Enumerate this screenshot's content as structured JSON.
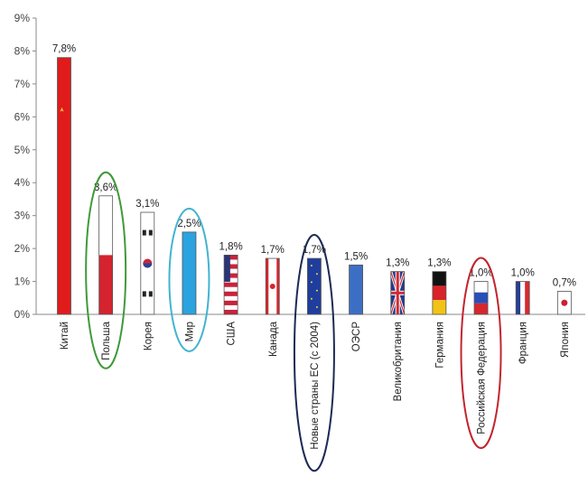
{
  "chart_data": {
    "type": "bar",
    "title": "",
    "xlabel": "",
    "ylabel": "",
    "ylim": [
      0,
      9
    ],
    "yticks": [
      "0%",
      "1%",
      "2%",
      "3%",
      "4%",
      "5%",
      "6%",
      "7%",
      "8%",
      "9%"
    ],
    "grid": false,
    "legend": "none",
    "categories": [
      "Китай",
      "Польша",
      "Корея",
      "Мир",
      "США",
      "Канада",
      "Новые страны ЕС (с 2004)",
      "ОЭСР",
      "Великобритания",
      "Германия",
      "Российская Федерация",
      "Франция",
      "Япония"
    ],
    "values": [
      7.8,
      3.6,
      3.1,
      2.5,
      1.8,
      1.7,
      1.7,
      1.5,
      1.3,
      1.3,
      1.0,
      1.0,
      0.7
    ],
    "data_labels": [
      "7,8%",
      "3,6%",
      "3,1%",
      "2,5%",
      "1,8%",
      "1,7%",
      "1,7%",
      "1,5%",
      "1,3%",
      "1,3%",
      "1,0%",
      "1,0%",
      "0,7%"
    ],
    "bar_styles": [
      "china-flag",
      "poland-flag",
      "korea-flag",
      "solid-light-blue",
      "usa-flag",
      "canada-flag",
      "eu-flag",
      "solid-steel-blue",
      "uk-flag",
      "germany-flag",
      "russia-flag",
      "france-flag",
      "japan-flag"
    ],
    "highlighted": [
      {
        "category": "Польша",
        "color": "#3f9a3a"
      },
      {
        "category": "Мир",
        "color": "#41b4d0"
      },
      {
        "category": "Новые страны ЕС (с 2004)",
        "color": "#1c2a55"
      },
      {
        "category": "Российская Федерация",
        "color": "#c2262e"
      }
    ],
    "colors": {
      "red": "#e01b1b",
      "world_blue": "#2aa3e0",
      "oecd_blue": "#3c6fc4",
      "eu_blue": "#1f3d9c",
      "navy": "#1d2a6a",
      "axis": "#888888"
    }
  }
}
